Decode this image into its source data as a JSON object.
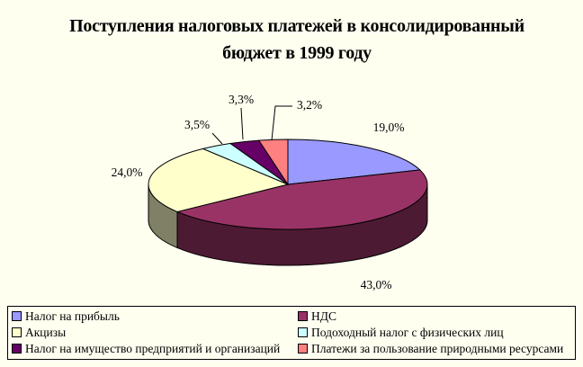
{
  "chart_data": {
    "type": "pie",
    "title": "Поступления налоговых платежей в консолидированный бюджет в 1999 году",
    "title_lines": [
      "Поступления налоговых платежей в консолидированный",
      "бюджет в 1999 году"
    ],
    "legend_position": "bottom",
    "slices": [
      {
        "name": "Налог на прибыль",
        "value": 19.0,
        "label": "19,0%",
        "color": "#9999ff"
      },
      {
        "name": "НДС",
        "value": 43.0,
        "label": "43,0%",
        "color": "#993366"
      },
      {
        "name": "Акцизы",
        "value": 24.0,
        "label": "24,0%",
        "color": "#ffffcc"
      },
      {
        "name": "Подоходный налог с физических лиц",
        "value": 3.5,
        "label": "3,5%",
        "color": "#ccffff"
      },
      {
        "name": "Налог на имущество предприятий и организаций",
        "value": 3.3,
        "label": "3,3%",
        "color": "#660066"
      },
      {
        "name": "Платежи за пользование природными ресурсами",
        "value": 3.2,
        "label": "3,2%",
        "color": "#ff8080"
      }
    ]
  }
}
